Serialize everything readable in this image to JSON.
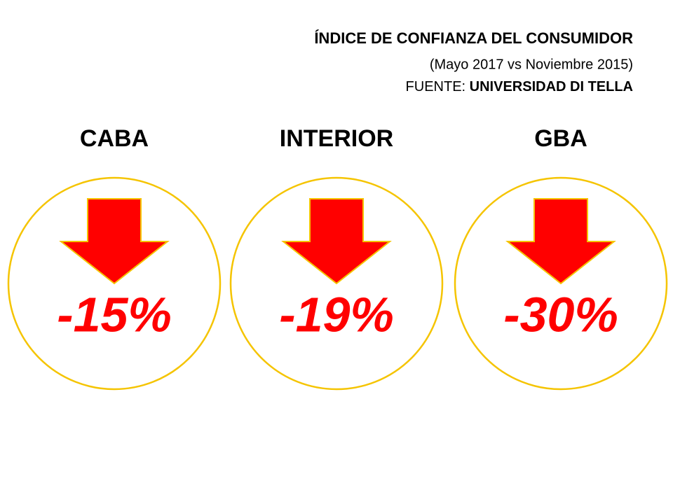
{
  "header": {
    "title": "ÍNDICE DE CONFIANZA DEL CONSUMIDOR",
    "subtitle": "(Mayo 2017 vs Noviembre 2015)",
    "source_label": "FUENTE:",
    "source": "UNIVERSIDAD DI TELLA"
  },
  "items": [
    {
      "label": "CABA",
      "value": "-15%"
    },
    {
      "label": "INTERIOR",
      "value": "-19%"
    },
    {
      "label": "GBA",
      "value": "-30%"
    }
  ]
}
